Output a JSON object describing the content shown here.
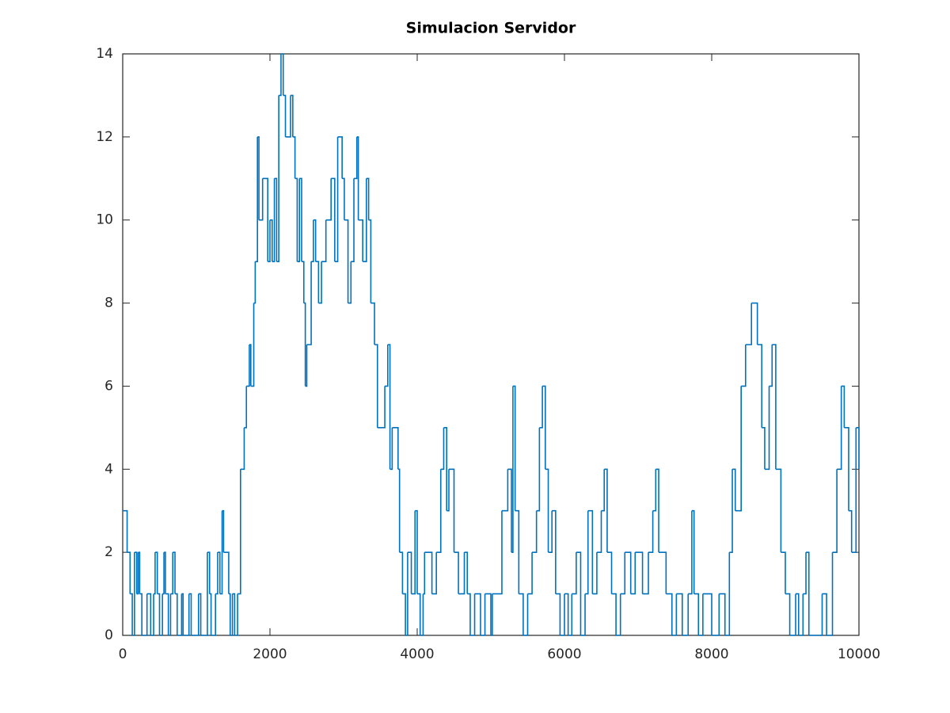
{
  "chart_data": {
    "type": "stairs",
    "title": "Simulacion Servidor",
    "color": "#0072bd",
    "x": [
      0,
      60,
      100,
      130,
      160,
      190,
      210,
      230,
      260,
      330,
      380,
      420,
      440,
      470,
      500,
      540,
      560,
      580,
      620,
      650,
      680,
      710,
      740,
      800,
      820,
      900,
      930,
      1030,
      1060,
      1150,
      1180,
      1200,
      1260,
      1290,
      1320,
      1350,
      1370,
      1440,
      1460,
      1490,
      1520,
      1560,
      1600,
      1650,
      1680,
      1720,
      1740,
      1780,
      1800,
      1830,
      1850,
      1900,
      1970,
      2000,
      2030,
      2060,
      2090,
      2120,
      2150,
      2180,
      2210,
      2280,
      2310,
      2340,
      2370,
      2400,
      2430,
      2460,
      2480,
      2500,
      2560,
      2590,
      2620,
      2660,
      2700,
      2760,
      2830,
      2880,
      2920,
      2980,
      3010,
      3060,
      3100,
      3140,
      3180,
      3200,
      3260,
      3310,
      3340,
      3370,
      3420,
      3460,
      3560,
      3600,
      3630,
      3660,
      3740,
      3760,
      3800,
      3840,
      3870,
      3920,
      3970,
      4000,
      4040,
      4080,
      4100,
      4200,
      4260,
      4320,
      4360,
      4400,
      4430,
      4500,
      4560,
      4640,
      4680,
      4720,
      4780,
      4860,
      4920,
      5000,
      5020,
      5150,
      5230,
      5280,
      5300,
      5330,
      5380,
      5440,
      5500,
      5560,
      5620,
      5660,
      5700,
      5740,
      5780,
      5830,
      5880,
      5940,
      6000,
      6050,
      6100,
      6160,
      6220,
      6280,
      6320,
      6380,
      6440,
      6500,
      6540,
      6580,
      6640,
      6700,
      6760,
      6820,
      6900,
      6960,
      7060,
      7140,
      7200,
      7240,
      7280,
      7380,
      7460,
      7520,
      7600,
      7680,
      7730,
      7760,
      7820,
      7880,
      8000,
      8100,
      8180,
      8240,
      8280,
      8320,
      8400,
      8460,
      8540,
      8620,
      8680,
      8720,
      8780,
      8820,
      8870,
      8940,
      9000,
      9060,
      9140,
      9180,
      9240,
      9280,
      9320,
      9500,
      9560,
      9640,
      9700,
      9760,
      9800,
      9860,
      9900,
      9960,
      10000
    ],
    "values": [
      3,
      2,
      1,
      0,
      2,
      1,
      2,
      1,
      0,
      1,
      0,
      1,
      2,
      1,
      0,
      1,
      2,
      1,
      0,
      1,
      2,
      1,
      0,
      1,
      0,
      1,
      0,
      1,
      0,
      2,
      1,
      0,
      1,
      2,
      1,
      3,
      2,
      1,
      0,
      1,
      0,
      1,
      4,
      5,
      6,
      7,
      6,
      8,
      9,
      12,
      10,
      11,
      9,
      10,
      9,
      11,
      9,
      13,
      14,
      13,
      12,
      13,
      12,
      11,
      9,
      11,
      9,
      8,
      6,
      7,
      9,
      10,
      9,
      8,
      9,
      10,
      11,
      9,
      12,
      11,
      10,
      8,
      9,
      11,
      12,
      10,
      9,
      11,
      10,
      8,
      7,
      5,
      6,
      7,
      4,
      5,
      4,
      2,
      1,
      0,
      2,
      1,
      3,
      1,
      0,
      1,
      2,
      1,
      2,
      4,
      5,
      3,
      4,
      2,
      1,
      2,
      1,
      0,
      1,
      0,
      1,
      0,
      1,
      3,
      4,
      2,
      6,
      3,
      1,
      0,
      1,
      2,
      3,
      5,
      6,
      4,
      2,
      3,
      1,
      0,
      1,
      0,
      1,
      2,
      0,
      1,
      3,
      1,
      2,
      3,
      4,
      2,
      1,
      0,
      1,
      2,
      1,
      2,
      1,
      2,
      3,
      4,
      2,
      1,
      0,
      1,
      0,
      1,
      3,
      1,
      0,
      1,
      0,
      1,
      0,
      2,
      4,
      3,
      6,
      7,
      8,
      7,
      5,
      4,
      6,
      7,
      4,
      2,
      1,
      0,
      1,
      0,
      1,
      2,
      0,
      1,
      0,
      2,
      4,
      6,
      5,
      3,
      2,
      5,
      4
    ],
    "xlim": [
      0,
      10000
    ],
    "xticks": [
      0,
      2000,
      4000,
      6000,
      8000,
      10000
    ],
    "ylim": [
      0,
      14
    ],
    "yticks": [
      0,
      2,
      4,
      6,
      8,
      10,
      12,
      14
    ],
    "grid": false
  }
}
